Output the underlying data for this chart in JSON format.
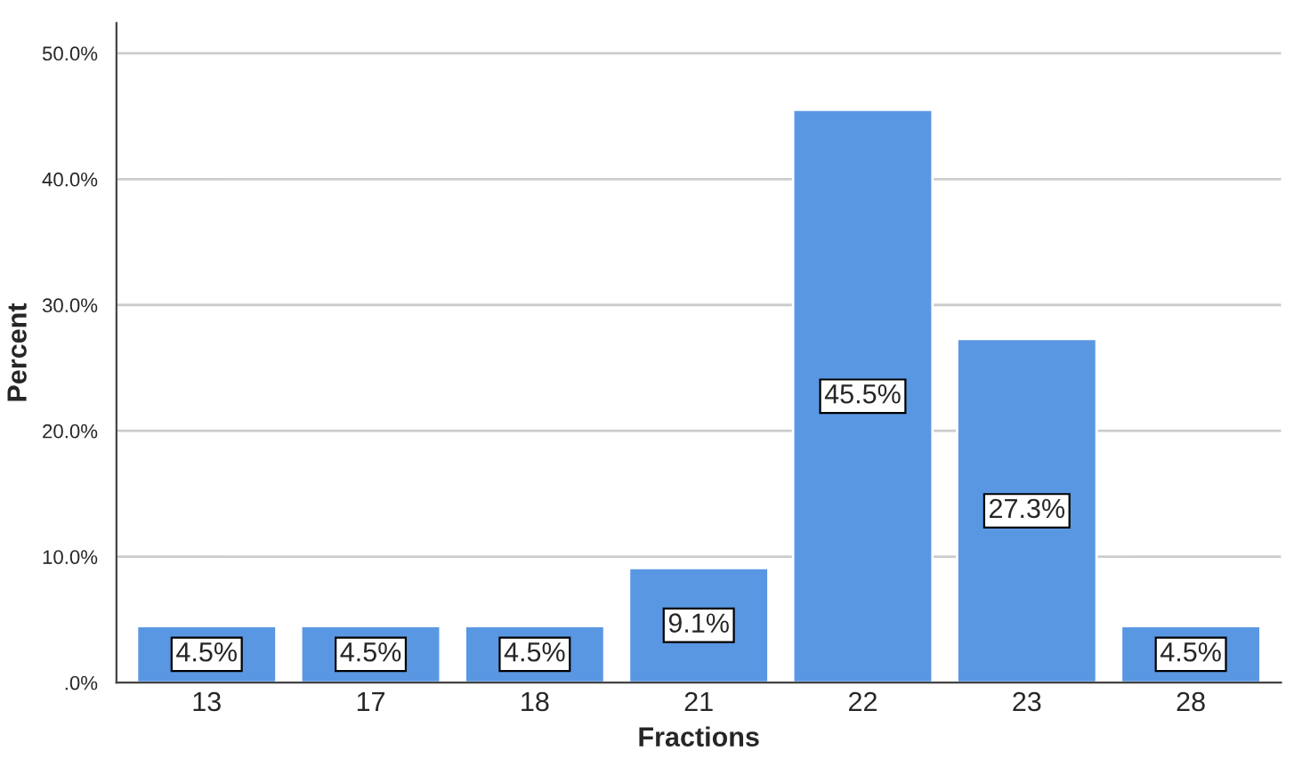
{
  "chart_data": {
    "type": "bar",
    "xlabel": "Fractions",
    "ylabel": "Percent",
    "categories": [
      "13",
      "17",
      "18",
      "21",
      "22",
      "23",
      "28"
    ],
    "values": [
      4.5,
      4.5,
      4.5,
      9.1,
      45.5,
      27.3,
      4.5
    ],
    "value_labels": [
      "4.5%",
      "4.5%",
      "4.5%",
      "9.1%",
      "45.5%",
      "27.3%",
      "4.5%"
    ],
    "color": "#5a97e3",
    "ylim": [
      0,
      52.4
    ],
    "yticks": [
      {
        "value": 0,
        "label": ".0%"
      },
      {
        "value": 10,
        "label": "10.0%"
      },
      {
        "value": 20,
        "label": "20.0%"
      },
      {
        "value": 30,
        "label": "30.0%"
      },
      {
        "value": 40,
        "label": "40.0%"
      },
      {
        "value": 50,
        "label": "50.0%"
      }
    ],
    "grid": "y",
    "legend": false
  }
}
